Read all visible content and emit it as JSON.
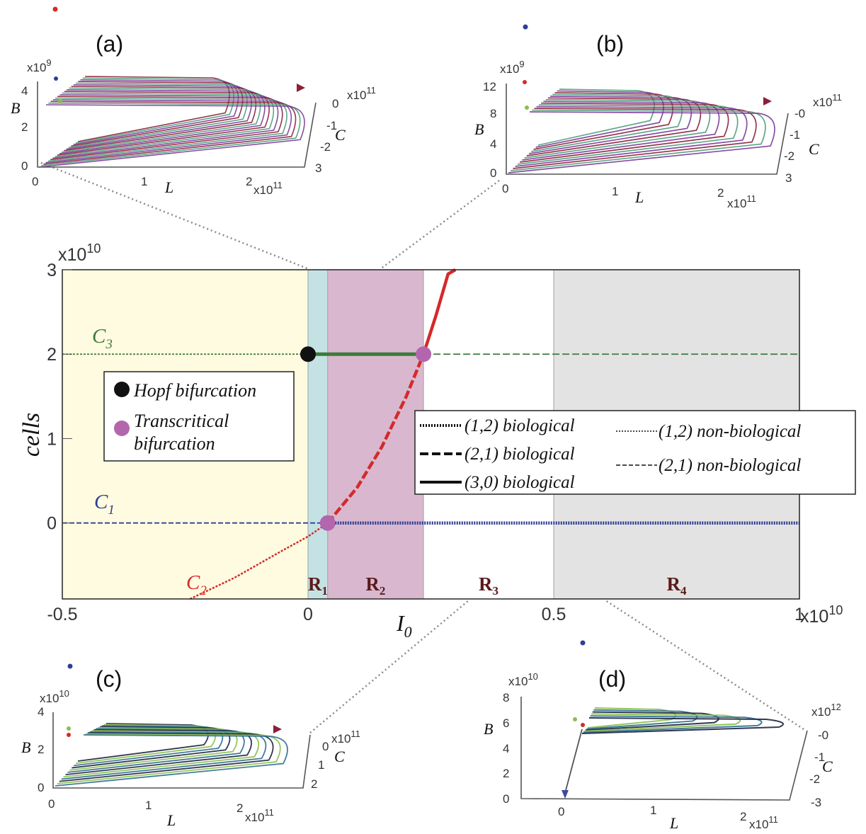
{
  "chart_data": {
    "type": "line",
    "xlabel": "I",
    "xlabel_sub": "0",
    "ylabel": "cells",
    "x_exponent": "x10",
    "x_exponent_power": "10",
    "y_exponent": "x10",
    "y_exponent_power": "10",
    "x_scale": 10000000000,
    "y_scale": 10000000000,
    "xlim": [
      -0.5,
      1
    ],
    "ylim": [
      -0.9,
      3
    ],
    "x_ticks": [
      "-0.5",
      "0",
      "0.5",
      "1"
    ],
    "y_ticks": [
      "3",
      "2",
      "1",
      "0"
    ],
    "regions": [
      {
        "label": "R",
        "sub": "1",
        "x": [
          0,
          0.04
        ],
        "color": "#c4e2e4"
      },
      {
        "label": "R",
        "sub": "2",
        "x": [
          0.04,
          0.235
        ],
        "color": "#d9b8cf"
      },
      {
        "label": "R",
        "sub": "3",
        "x": [
          0.235,
          0.5
        ],
        "color": "#ffffff"
      },
      {
        "label": "R",
        "sub": "4",
        "x": [
          0.5,
          1
        ],
        "color": "#e3e3e3"
      }
    ],
    "left_region_color": "#fffbe0",
    "series": [
      {
        "name": "C",
        "sub": "1",
        "color": "#2c3e95",
        "y_const": 0
      },
      {
        "name": "C",
        "sub": "3",
        "color": "#3c7a3a",
        "y_const": 2
      },
      {
        "name": "C",
        "sub": "2",
        "color": "#d42a2a",
        "x": [
          -0.24,
          -0.15,
          -0.05,
          0.0,
          0.04,
          0.1,
          0.15,
          0.2,
          0.235,
          0.26,
          0.285,
          0.3
        ],
        "y": [
          -0.9,
          -0.65,
          -0.32,
          -0.16,
          0.0,
          0.42,
          0.9,
          1.5,
          2.0,
          2.45,
          2.95,
          3.0
        ]
      }
    ],
    "points": [
      {
        "name": "Hopf bifurcation",
        "x": 0,
        "y": 2,
        "color": "#111111"
      },
      {
        "name": "Transcritical bifurcation",
        "x": 0.04,
        "y": 0,
        "color": "#b366ad"
      },
      {
        "name": "Transcritical bifurcation",
        "x": 0.235,
        "y": 2,
        "color": "#b366ad"
      }
    ],
    "legend_points": [
      {
        "label": "Hopf bifurcation",
        "color": "#111111"
      },
      {
        "label": "Transcritical",
        "label2": "bifurcation",
        "color": "#b366ad"
      }
    ],
    "legend_lines": [
      {
        "label": "(1,2) biological",
        "style": "dotted-bold"
      },
      {
        "label": "(2,1) biological",
        "style": "dashed-bold"
      },
      {
        "label": "(3,0) biological",
        "style": "solid-bold"
      },
      {
        "label": "(1,2) non-biological",
        "style": "dotted-thin"
      },
      {
        "label": "(2,1) non-biological",
        "style": "dashed-thin"
      }
    ]
  },
  "insets": [
    {
      "id": "a",
      "label": "(a)",
      "b_exp": "x10",
      "b_pow": "9",
      "b_ticks": [
        "4",
        "2",
        "0"
      ],
      "l_ticks": [
        "0",
        "1",
        "2"
      ],
      "l_exp": "x10",
      "l_pow": "11",
      "c_ticks": [
        "0",
        "1",
        "2",
        "3"
      ],
      "c_exp": "x10",
      "c_pow": "11",
      "axis_B": "B",
      "axis_L": "L",
      "axis_C": "C"
    },
    {
      "id": "b",
      "label": "(b)",
      "b_exp": "x10",
      "b_pow": "9",
      "b_ticks": [
        "12",
        "8",
        "4",
        "0"
      ],
      "l_ticks": [
        "0",
        "1",
        "2"
      ],
      "l_exp": "x10",
      "l_pow": "11",
      "c_ticks": [
        "0",
        "1",
        "2",
        "3"
      ],
      "c_exp": "x10",
      "c_pow": "11",
      "axis_B": "B",
      "axis_L": "L",
      "axis_C": "C"
    },
    {
      "id": "c",
      "label": "(c)",
      "b_exp": "x10",
      "b_pow": "10",
      "b_ticks": [
        "4",
        "2",
        "0"
      ],
      "l_ticks": [
        "0",
        "1",
        "2"
      ],
      "l_exp": "x10",
      "l_pow": "11",
      "c_ticks": [
        "0",
        "1",
        "2"
      ],
      "c_exp": "x10",
      "c_pow": "11",
      "axis_B": "B",
      "axis_L": "L",
      "axis_C": "C"
    },
    {
      "id": "d",
      "label": "(d)",
      "b_exp": "x10",
      "b_pow": "10",
      "b_ticks": [
        "8",
        "6",
        "4",
        "2",
        "0"
      ],
      "l_ticks": [
        "0",
        "1",
        "2"
      ],
      "l_exp": "x10",
      "l_pow": "11",
      "c_ticks": [
        "0",
        "1",
        "2",
        "3"
      ],
      "c_exp": "x10",
      "c_pow": "12",
      "axis_B": "B",
      "axis_L": "L",
      "axis_C": "C"
    }
  ],
  "colors": {
    "frame": "#222222",
    "connector": "#8a8a8a",
    "orbit_palette": [
      "#8a1f3a",
      "#1c2340",
      "#3b4aa3",
      "#4f9c7a",
      "#8bbf4a",
      "#c9c046",
      "#7a3a9a",
      "#2f6f8f",
      "#b44a34"
    ]
  }
}
